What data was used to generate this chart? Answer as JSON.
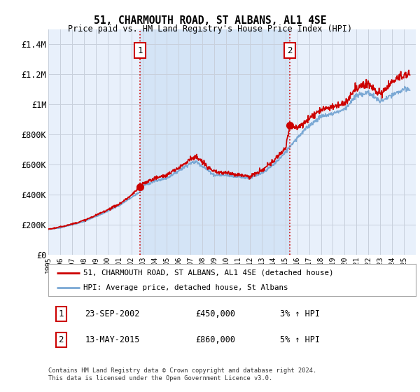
{
  "title": "51, CHARMOUTH ROAD, ST ALBANS, AL1 4SE",
  "subtitle": "Price paid vs. HM Land Registry's House Price Index (HPI)",
  "ytick_values": [
    0,
    200000,
    400000,
    600000,
    800000,
    1000000,
    1200000,
    1400000
  ],
  "ylim": [
    0,
    1500000
  ],
  "background_color": "#ffffff",
  "plot_bg_color": "#e8f0fb",
  "highlight_color": "#dce8f8",
  "grid_color": "#c8d0dc",
  "hpi_color": "#7aa8d4",
  "price_color": "#cc0000",
  "sale1_date_num": 2002.73,
  "sale1_price": 450000,
  "sale2_date_num": 2015.36,
  "sale2_price": 860000,
  "legend_label1": "51, CHARMOUTH ROAD, ST ALBANS, AL1 4SE (detached house)",
  "legend_label2": "HPI: Average price, detached house, St Albans",
  "annotation1_date": "23-SEP-2002",
  "annotation1_price": "£450,000",
  "annotation1_hpi": "3% ↑ HPI",
  "annotation2_date": "13-MAY-2015",
  "annotation2_price": "£860,000",
  "annotation2_hpi": "5% ↑ HPI",
  "footer": "Contains HM Land Registry data © Crown copyright and database right 2024.\nThis data is licensed under the Open Government Licence v3.0.",
  "xmin": 1995,
  "xmax": 2026
}
